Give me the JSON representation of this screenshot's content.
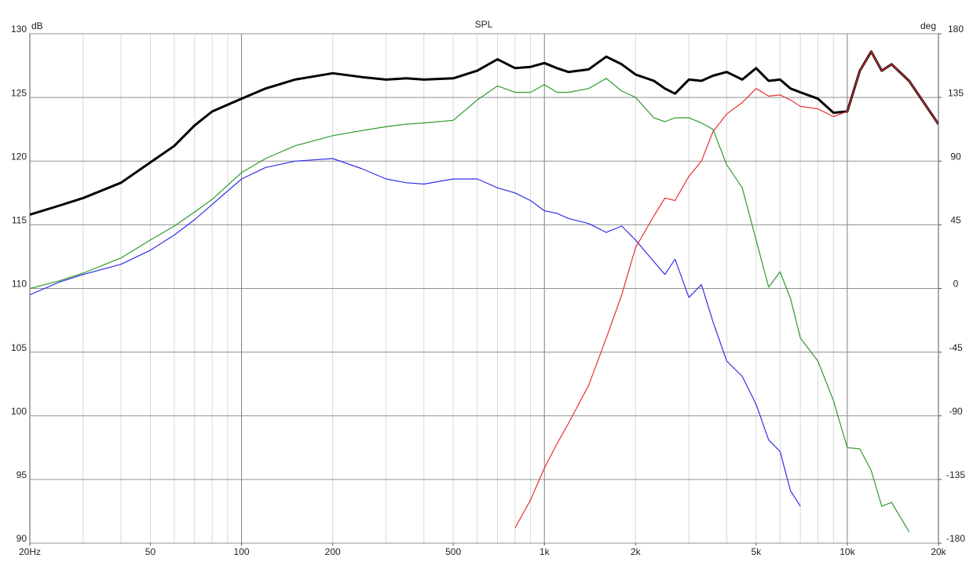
{
  "chart_data": {
    "type": "line",
    "title": "SPL",
    "ylabel": "dB",
    "y2label": "deg",
    "log_x": true,
    "grid": true,
    "minor_grid": true,
    "xlim": [
      20,
      20000
    ],
    "ylim": [
      90,
      130
    ],
    "y2lim": [
      -180,
      180
    ],
    "xticks": [
      {
        "value": 20,
        "label": "20Hz"
      },
      50,
      100,
      200,
      500,
      {
        "value": 1000,
        "label": "1k"
      },
      {
        "value": 2000,
        "label": "2k"
      },
      {
        "value": 5000,
        "label": "5k"
      },
      {
        "value": 10000,
        "label": "10k"
      },
      {
        "value": 20000,
        "label": "20k"
      }
    ],
    "yticks": [
      90,
      95,
      100,
      105,
      110,
      115,
      120,
      125,
      130
    ],
    "y2ticks": [
      -180,
      -135,
      -90,
      -45,
      0,
      45,
      90,
      135,
      180
    ],
    "x": [
      20,
      25,
      30,
      40,
      50,
      60,
      70,
      80,
      100,
      120,
      150,
      200,
      250,
      300,
      350,
      400,
      500,
      600,
      700,
      800,
      900,
      1000,
      1100,
      1200,
      1400,
      1600,
      1800,
      2000,
      2300,
      2500,
      2700,
      3000,
      3300,
      3600,
      4000,
      4500,
      5000,
      5500,
      6000,
      6500,
      7000,
      8000,
      9000,
      10000,
      11000,
      12000,
      13000,
      14000,
      16000,
      18000,
      20000
    ],
    "series": [
      {
        "color": "#000000",
        "width": 3,
        "values": [
          115.8,
          116.5,
          117.1,
          118.3,
          119.9,
          121.2,
          122.8,
          123.9,
          124.9,
          125.7,
          126.4,
          126.9,
          126.6,
          126.4,
          126.5,
          126.4,
          126.5,
          127.1,
          128.0,
          127.3,
          127.4,
          127.7,
          127.3,
          127.0,
          127.2,
          128.2,
          127.6,
          126.8,
          126.3,
          125.7,
          125.3,
          126.4,
          126.3,
          126.7,
          127.0,
          126.4,
          127.3,
          126.3,
          126.4,
          125.7,
          125.4,
          124.9,
          123.8,
          123.9,
          127.1,
          128.6,
          127.1,
          127.6,
          126.3,
          124.5,
          122.9
        ]
      },
      {
        "color": "#2e9a2e",
        "width": 1.2,
        "values": [
          110.0,
          110.6,
          111.2,
          112.4,
          113.8,
          114.9,
          116.0,
          117.0,
          119.1,
          120.2,
          121.2,
          122.0,
          122.4,
          122.7,
          122.9,
          123.0,
          123.2,
          124.8,
          125.9,
          125.4,
          125.4,
          126.0,
          125.4,
          125.4,
          125.7,
          126.5,
          125.5,
          125.0,
          123.4,
          123.1,
          123.4,
          123.4,
          123.0,
          122.5,
          119.7,
          117.9,
          113.8,
          110.1,
          111.3,
          109.2,
          106.1,
          104.3,
          101.2,
          97.5,
          97.4,
          95.7,
          92.9,
          93.2,
          90.9,
          null,
          null
        ]
      },
      {
        "color": "#3030e8",
        "width": 1.2,
        "values": [
          109.5,
          110.5,
          111.1,
          111.9,
          113.0,
          114.2,
          115.4,
          116.6,
          118.6,
          119.5,
          120.0,
          120.2,
          119.4,
          118.6,
          118.3,
          118.2,
          118.6,
          118.6,
          117.9,
          117.5,
          116.9,
          116.1,
          115.9,
          115.5,
          115.1,
          114.4,
          114.9,
          113.8,
          112.1,
          111.1,
          112.3,
          109.3,
          110.3,
          107.4,
          104.3,
          103.1,
          100.9,
          98.1,
          97.2,
          94.1,
          92.9,
          null,
          null,
          null,
          null,
          null,
          null,
          null,
          null,
          null,
          null
        ]
      },
      {
        "color": "#e83030",
        "width": 1.2,
        "values": [
          null,
          null,
          null,
          null,
          null,
          null,
          null,
          null,
          null,
          null,
          null,
          null,
          null,
          null,
          null,
          null,
          null,
          null,
          null,
          91.2,
          93.4,
          95.9,
          97.8,
          99.4,
          102.4,
          106.1,
          109.5,
          113.2,
          115.7,
          117.1,
          116.9,
          118.8,
          120.0,
          122.3,
          123.7,
          124.6,
          125.7,
          125.1,
          125.2,
          124.8,
          124.3,
          124.1,
          123.5,
          123.9,
          127.1,
          128.6,
          127.1,
          127.6,
          126.3,
          124.5,
          122.9
        ]
      }
    ]
  }
}
